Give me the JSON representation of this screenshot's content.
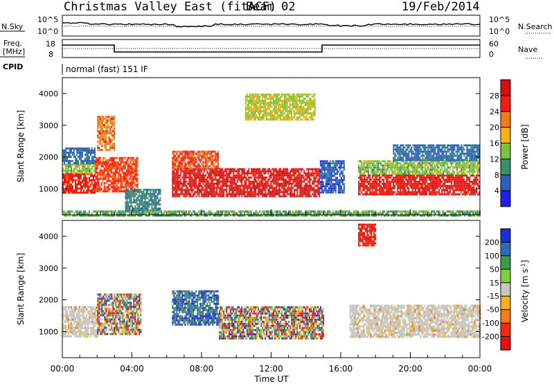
{
  "header": {
    "station": "Christmas Valley East (fitACF)",
    "beam": "Beam 02",
    "date": "19/Feb/2014"
  },
  "nsky_panel": {
    "left_label": "N.Sky",
    "right_label": "N.Search",
    "left_ticks": [
      "10^5",
      "10^0"
    ],
    "right_ticks": [
      "10^5",
      "10^0"
    ]
  },
  "freq_panel": {
    "left_label_1": "Freq.",
    "left_label_2": "[MHz]",
    "right_label": "Nave",
    "left_ticks": [
      "18",
      "8"
    ],
    "right_ticks": [
      "60",
      "0"
    ]
  },
  "cpid": {
    "label": "CPID",
    "value": "normal (fast) 151 IF"
  },
  "chart_data": [
    {
      "type": "heatmap",
      "panel": "power",
      "ylabel": "Slant Range [km]",
      "ylim": [
        180,
        4500
      ],
      "yticks": [
        1000,
        2000,
        3000,
        4000
      ],
      "xlim": [
        0,
        24
      ],
      "colorbar": {
        "label": "Power [dB]",
        "ticks": [
          4,
          8,
          12,
          16,
          20,
          24,
          28
        ],
        "range": [
          0,
          32
        ],
        "colors": [
          "#1f1fe8",
          "#2f5fb8",
          "#3c8f6c",
          "#7cc23e",
          "#f2b21e",
          "#f07a1c",
          "#f01e12",
          "#d01010"
        ]
      },
      "regions": [
        {
          "t0": 0.0,
          "t1": 1.9,
          "r0": 850,
          "r1": 1500,
          "level": 26
        },
        {
          "t0": 0.0,
          "t1": 1.9,
          "r0": 1500,
          "r1": 1800,
          "level": 14
        },
        {
          "t0": 0.0,
          "t1": 1.9,
          "r0": 1800,
          "r1": 2300,
          "level": 7
        },
        {
          "t0": 2.0,
          "t1": 3.0,
          "r0": 2200,
          "r1": 3300,
          "level": 22
        },
        {
          "t0": 1.9,
          "t1": 4.3,
          "r0": 950,
          "r1": 2000,
          "level": 25
        },
        {
          "t0": 3.6,
          "t1": 5.6,
          "r0": 300,
          "r1": 1000,
          "level": 9
        },
        {
          "t0": 6.3,
          "t1": 14.8,
          "r0": 750,
          "r1": 1650,
          "level": 28
        },
        {
          "t0": 6.3,
          "t1": 9.0,
          "r0": 1650,
          "r1": 2200,
          "level": 24
        },
        {
          "t0": 14.8,
          "t1": 16.2,
          "r0": 900,
          "r1": 1900,
          "level": 6
        },
        {
          "t0": 17.0,
          "t1": 24.0,
          "r0": 850,
          "r1": 1450,
          "level": 27
        },
        {
          "t0": 17.0,
          "t1": 24.0,
          "r0": 1450,
          "r1": 1900,
          "level": 14
        },
        {
          "t0": 19.0,
          "t1": 24.0,
          "r0": 1900,
          "r1": 2400,
          "level": 7
        },
        {
          "t0": 10.5,
          "t1": 14.5,
          "r0": 3200,
          "r1": 4000,
          "level": 16
        },
        {
          "t0": 0.0,
          "t1": 24.0,
          "r0": 180,
          "r1": 320,
          "level": 12
        }
      ]
    },
    {
      "type": "heatmap",
      "panel": "velocity",
      "ylabel": "Slant Range [km]",
      "xlabel": "Time UT",
      "ylim": [
        180,
        4500
      ],
      "yticks": [
        1000,
        2000,
        3000,
        4000
      ],
      "xlim": [
        0,
        24
      ],
      "xticks": [
        "00:00",
        "04:00",
        "08:00",
        "12:00",
        "16:00",
        "20:00",
        "00:00"
      ],
      "colorbar": {
        "label": "Velocity [m s^-1]",
        "ticks": [
          200,
          100,
          50,
          15,
          -15,
          -50,
          -100,
          -200
        ],
        "colors": [
          "#1e2fd0",
          "#2f6ab5",
          "#3e9a4a",
          "#7fd03a",
          "#c8c8c0",
          "#f2b21e",
          "#f07a1c",
          "#f02a10",
          "#e01010"
        ]
      },
      "regions": [
        {
          "t0": 0.0,
          "t1": 2.0,
          "r0": 850,
          "r1": 1800,
          "level": "ground"
        },
        {
          "t0": 2.0,
          "t1": 4.5,
          "r0": 900,
          "r1": 2200,
          "level": "mixed"
        },
        {
          "t0": 6.3,
          "t1": 9.0,
          "r0": 1200,
          "r1": 2300,
          "level": "positive"
        },
        {
          "t0": 9.0,
          "t1": 15.0,
          "r0": 800,
          "r1": 1800,
          "level": "mixed"
        },
        {
          "t0": 16.5,
          "t1": 24.0,
          "r0": 850,
          "r1": 1850,
          "level": "ground"
        },
        {
          "t0": 17.0,
          "t1": 18.0,
          "r0": 3700,
          "r1": 4400,
          "level": "negative"
        }
      ]
    }
  ]
}
